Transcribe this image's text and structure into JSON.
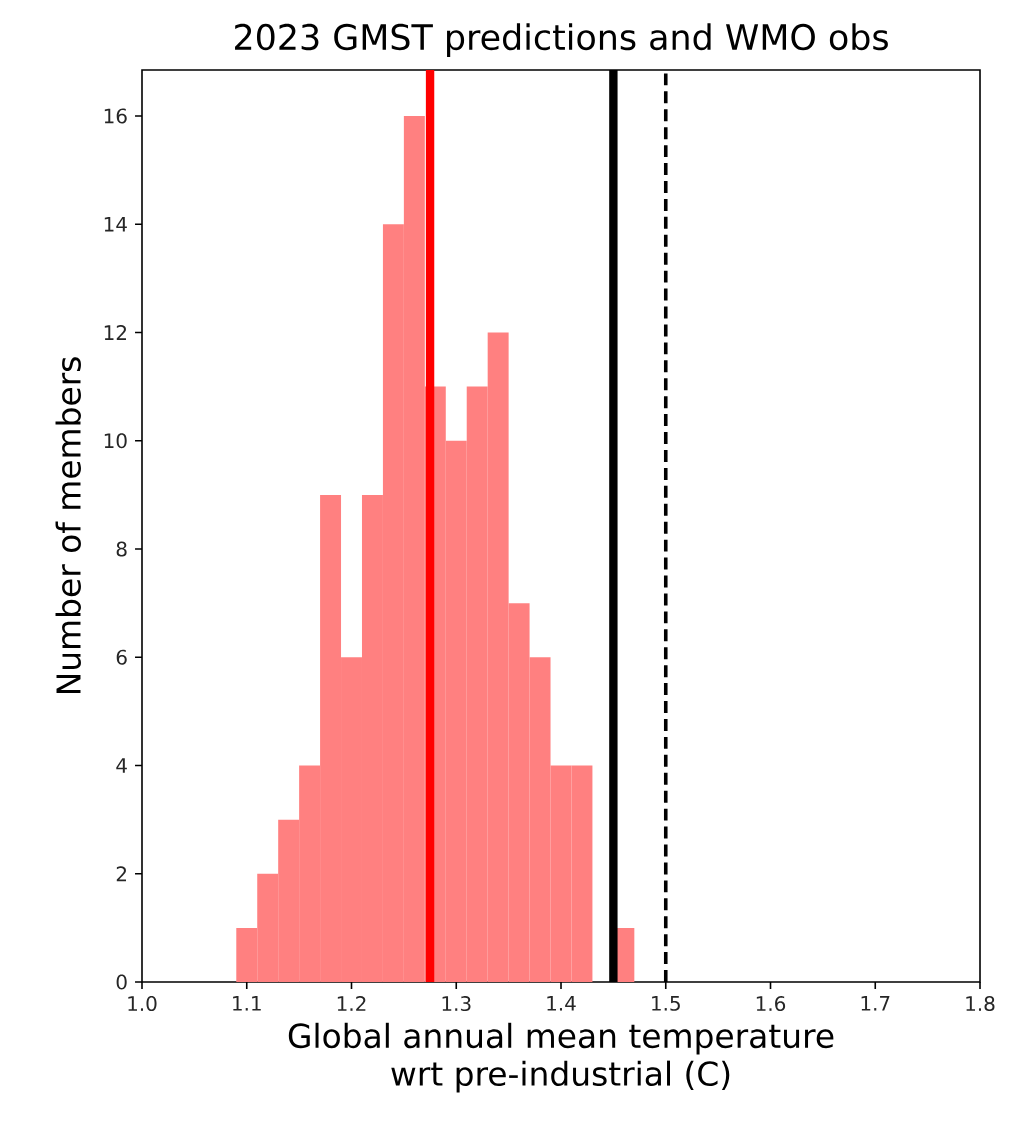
{
  "chart_data": {
    "type": "histogram",
    "title": "2023 GMST predictions and WMO obs",
    "xlabel": "Global annual mean temperature\nwrt pre-industrial (C)",
    "ylabel": "Number of members",
    "bins": [
      1.09,
      1.11,
      1.13,
      1.15,
      1.17,
      1.19,
      1.21,
      1.23,
      1.25,
      1.27,
      1.29,
      1.31,
      1.33,
      1.35,
      1.37,
      1.39,
      1.41,
      1.43,
      1.45,
      1.47
    ],
    "values": [
      1,
      2,
      3,
      4,
      9,
      6,
      9,
      14,
      16,
      11,
      10,
      11,
      12,
      7,
      6,
      4,
      4,
      0,
      1
    ],
    "color": "#ff8080",
    "xlim": [
      1.0,
      1.8
    ],
    "xticks": [
      {
        "value": 1.0,
        "label": "1.0"
      },
      1.1,
      1.2,
      1.3,
      1.4,
      1.5,
      1.6,
      1.7,
      1.8
    ],
    "ylim": [
      0,
      16.85
    ],
    "yticks": [
      0,
      2,
      4,
      6,
      8,
      10,
      12,
      14,
      16
    ],
    "ref_lines": [
      {
        "axis": "x",
        "value": 1.275,
        "color": "#ff0000",
        "line_style": "solid"
      },
      {
        "axis": "x",
        "value": 1.45,
        "color": "#000000",
        "line_style": "solid"
      },
      {
        "axis": "x",
        "value": 1.5,
        "color": "#000000",
        "line_style": "dashed"
      }
    ],
    "grid": false
  }
}
